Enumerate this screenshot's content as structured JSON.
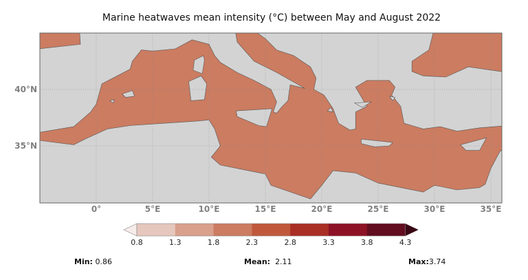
{
  "title": "Marine heatwaves mean intensity (°C) between May and August 2022",
  "map": {
    "lon_range": [
      -5,
      36
    ],
    "lat_range": [
      30,
      45
    ],
    "x_ticks": [
      "0°",
      "5°E",
      "10°E",
      "15°E",
      "20°E",
      "25°E",
      "30°E",
      "35°E"
    ],
    "y_ticks": [
      "40°N",
      "35°N"
    ],
    "land_color": "#d3d3d3",
    "grid": true
  },
  "colorbar": {
    "ticks": [
      "0.8",
      "1.3",
      "1.8",
      "2.3",
      "2.8",
      "3.3",
      "3.8",
      "4.3"
    ],
    "colors": [
      "#e6c7be",
      "#d9a08c",
      "#cb7c61",
      "#c0593c",
      "#a92e24",
      "#8d1226",
      "#620d20"
    ],
    "under_color": "#f6ece9",
    "over_color": "#3a0714",
    "extend": "both"
  },
  "stats": {
    "min_label": "Min:",
    "min_value": "0.86",
    "mean_label": "Mean:",
    "mean_value": "2.11",
    "max_label": "Max:",
    "max_value": "3.74"
  }
}
